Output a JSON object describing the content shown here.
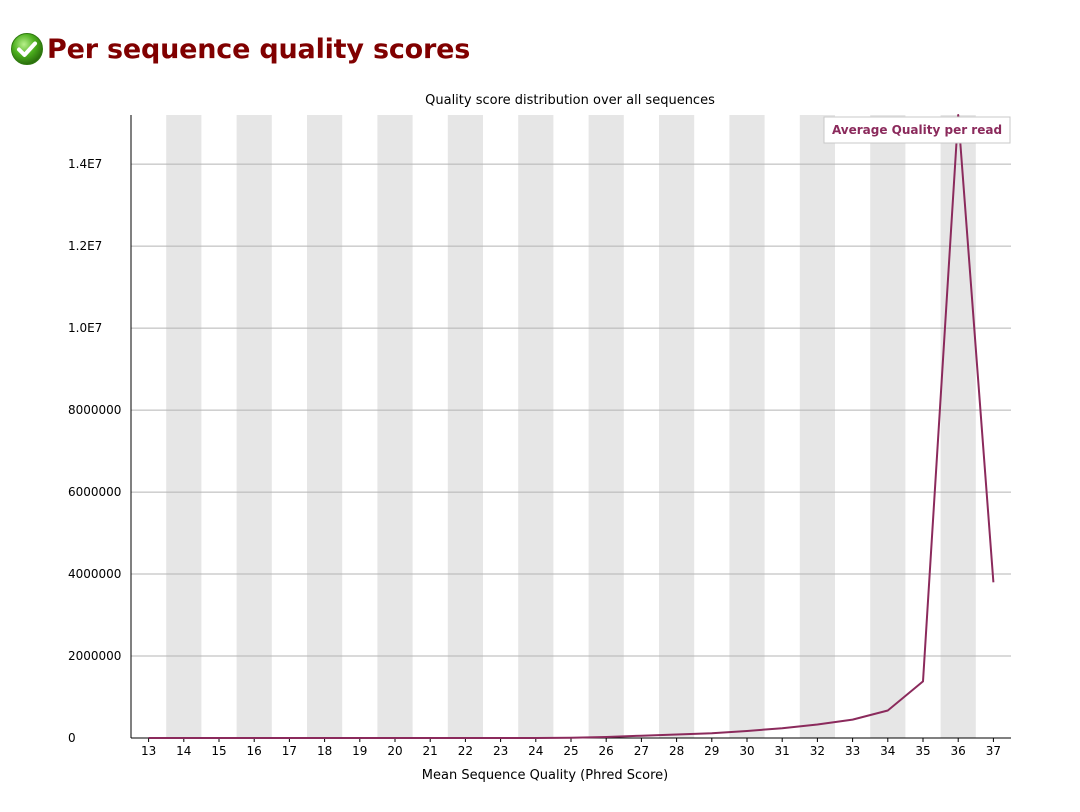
{
  "header": {
    "title": "Per sequence quality scores",
    "status_icon": "pass-check-icon"
  },
  "colors": {
    "title": "#800000",
    "line": "#8b2a5c",
    "stripe": "#e6e6e6",
    "grid": "#b4b4b4"
  },
  "chart_data": {
    "type": "line",
    "title": "Quality score distribution over all sequences",
    "xlabel": "Mean Sequence Quality (Phred Score)",
    "ylabel": "",
    "ylim": [
      0,
      15200000
    ],
    "yticks": [
      0,
      2000000,
      4000000,
      6000000,
      8000000,
      10000000,
      12000000,
      14000000
    ],
    "ytick_labels": [
      "0",
      "2000000",
      "4000000",
      "6000000",
      "8000000",
      "1.0E7",
      "1.2E7",
      "1.4E7"
    ],
    "categories": [
      "13",
      "14",
      "15",
      "16",
      "17",
      "18",
      "19",
      "20",
      "21",
      "22",
      "23",
      "24",
      "25",
      "26",
      "27",
      "28",
      "29",
      "30",
      "31",
      "32",
      "33",
      "34",
      "35",
      "36",
      "37"
    ],
    "legend_position": "top-right",
    "grid": true,
    "series": [
      {
        "name": "Average Quality per read",
        "values": [
          0,
          0,
          0,
          0,
          0,
          0,
          0,
          0,
          0,
          0,
          0,
          0,
          5000,
          25000,
          55000,
          85000,
          115000,
          170000,
          240000,
          330000,
          450000,
          670000,
          1380000,
          15200000,
          3800000
        ]
      }
    ]
  }
}
